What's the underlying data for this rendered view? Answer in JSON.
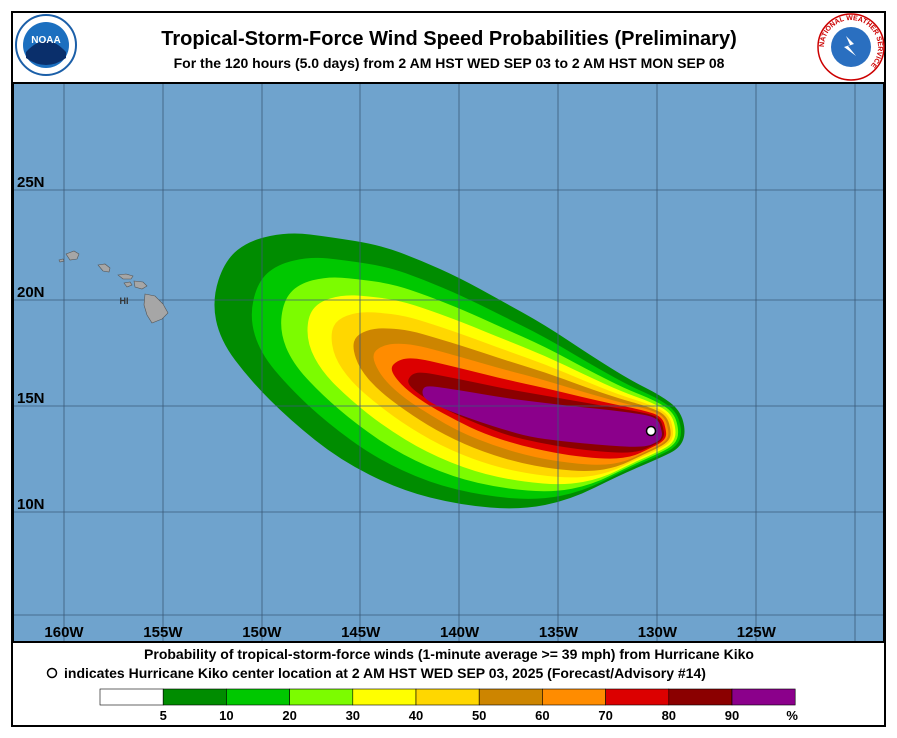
{
  "header": {
    "title": "Tropical-Storm-Force Wind Speed Probabilities (Preliminary)",
    "subtitle": "For the 120 hours (5.0 days) from 2 AM HST WED SEP 03 to 2 AM HST MON SEP 08",
    "left_logo": "NOAA",
    "right_logo": "NATIONAL WEATHER SERVICE"
  },
  "map": {
    "lat_labels": [
      "25N",
      "20N",
      "15N",
      "10N"
    ],
    "lon_labels": [
      "160W",
      "155W",
      "150W",
      "145W",
      "140W",
      "135W",
      "130W",
      "125W"
    ],
    "island_label": "HI"
  },
  "footer": {
    "line1": "Probability of tropical-storm-force winds (1-minute average >= 39 mph) from Hurricane Kiko",
    "line2": "indicates Hurricane Kiko center location at 2 AM HST WED SEP 03, 2025 (Forecast/Advisory #14)"
  },
  "legend": {
    "colors": [
      "#ffffff",
      "#008c00",
      "#00c800",
      "#7cfc00",
      "#ffff00",
      "#ffd700",
      "#cd8500",
      "#ff8c00",
      "#dc0000",
      "#8b0000",
      "#8b008b"
    ],
    "ticks": [
      "5",
      "10",
      "20",
      "30",
      "40",
      "50",
      "60",
      "70",
      "80",
      "90"
    ],
    "unit": "%"
  }
}
